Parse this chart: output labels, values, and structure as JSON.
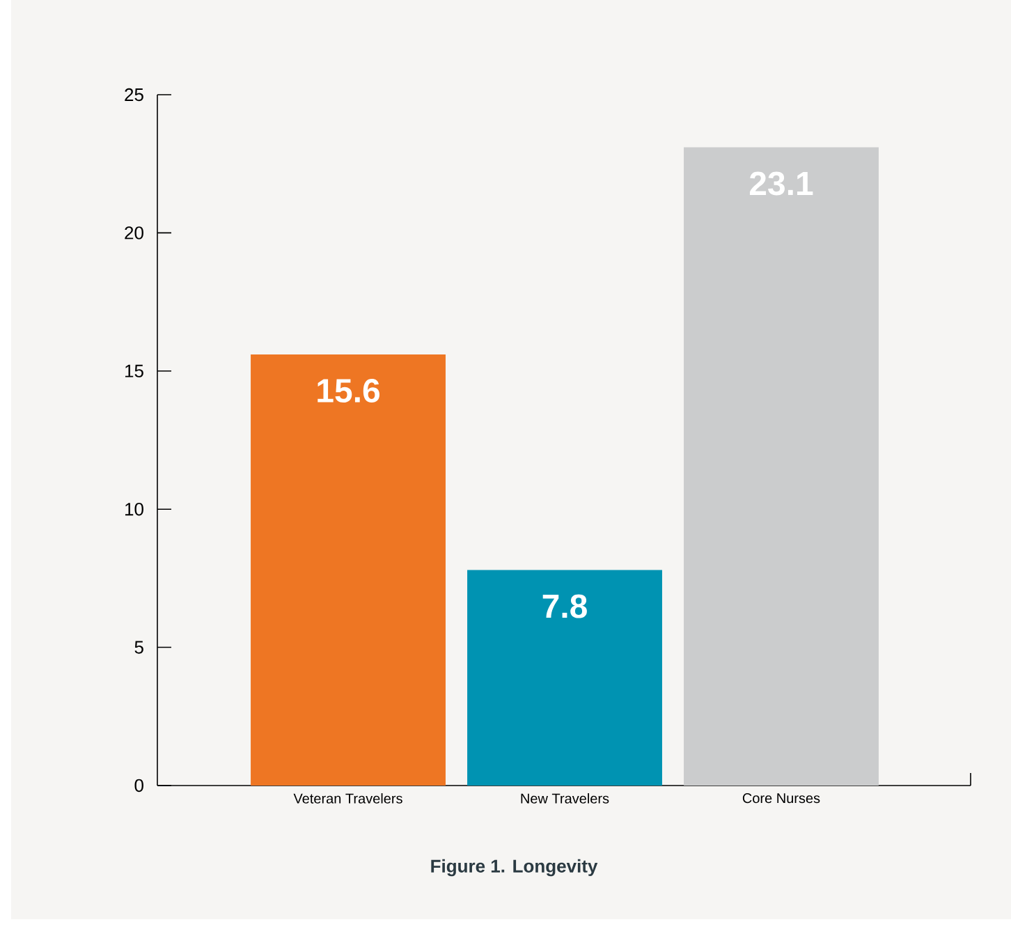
{
  "chart_data": {
    "type": "bar",
    "title": "Figure 1. Longevity",
    "categories": [
      "Veteran Travelers",
      "New Travelers",
      "Core Nurses"
    ],
    "values": [
      15.6,
      7.8,
      23.1
    ],
    "colors": [
      "#ee7623",
      "#0093b2",
      "#cbcccd"
    ],
    "ylim": [
      0,
      25
    ],
    "yticks": [
      0,
      5,
      10,
      15,
      20,
      25
    ],
    "data_labels": true,
    "grid": false
  }
}
